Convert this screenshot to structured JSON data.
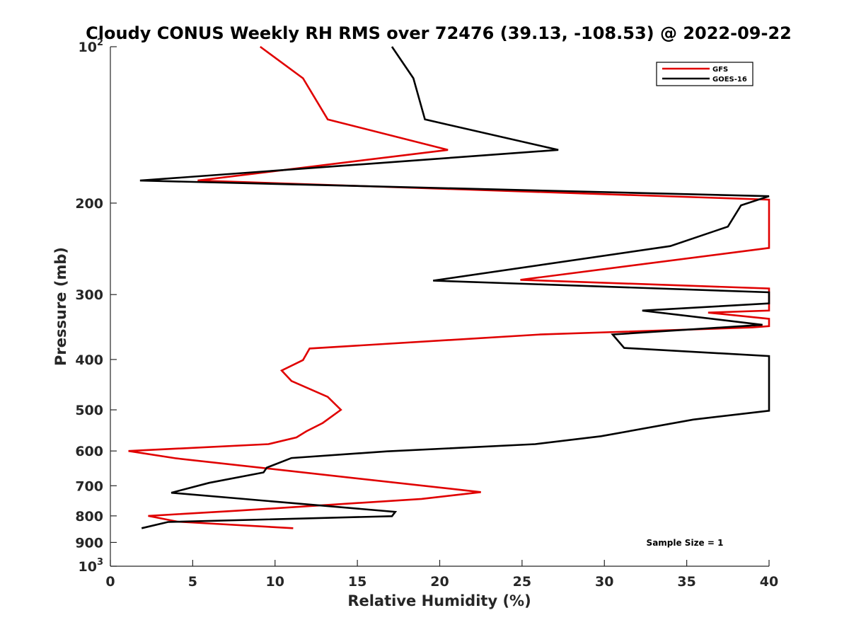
{
  "chart_data": {
    "type": "line",
    "title": "Cloudy CONUS Weekly RH RMS over 72476 (39.13, -108.53) @ 2022-09-22",
    "xlabel": "Relative Humidity (%)",
    "ylabel": "Pressure (mb)",
    "xlim": [
      0,
      40
    ],
    "ylim": [
      100,
      1000
    ],
    "y_scale": "log",
    "y_reversed": true,
    "x_ticks": [
      "0",
      "5",
      "10",
      "15",
      "20",
      "25",
      "30",
      "35",
      "40"
    ],
    "y_ticks": [
      {
        "value": 100,
        "label": "10",
        "sup": "2"
      },
      {
        "value": 200,
        "label": "200",
        "sup": ""
      },
      {
        "value": 300,
        "label": "300",
        "sup": ""
      },
      {
        "value": 400,
        "label": "400",
        "sup": ""
      },
      {
        "value": 500,
        "label": "500",
        "sup": ""
      },
      {
        "value": 600,
        "label": "600",
        "sup": ""
      },
      {
        "value": 700,
        "label": "700",
        "sup": ""
      },
      {
        "value": 800,
        "label": "800",
        "sup": ""
      },
      {
        "value": 900,
        "label": "900",
        "sup": ""
      },
      {
        "value": 1000,
        "label": "10",
        "sup": "3"
      }
    ],
    "legend_position": "top-right",
    "grid": false,
    "annotation": "Sample Size = 1",
    "series": [
      {
        "name": "GFS",
        "color": "#e00000",
        "points": [
          [
            9.1,
            100
          ],
          [
            11.7,
            115
          ],
          [
            13.2,
            138
          ],
          [
            20.5,
            158
          ],
          [
            5.3,
            181
          ],
          [
            40.0,
            197
          ],
          [
            40.0,
            244
          ],
          [
            24.9,
            281
          ],
          [
            40.0,
            292
          ],
          [
            40.0,
            322
          ],
          [
            36.3,
            325
          ],
          [
            40.0,
            334
          ],
          [
            40.0,
            345
          ],
          [
            39.0,
            347
          ],
          [
            26.1,
            358
          ],
          [
            12.1,
            381
          ],
          [
            11.7,
            401
          ],
          [
            10.4,
            420
          ],
          [
            11.0,
            440
          ],
          [
            13.2,
            472
          ],
          [
            14.0,
            500
          ],
          [
            12.9,
            530
          ],
          [
            11.9,
            550
          ],
          [
            11.3,
            565
          ],
          [
            9.6,
            582
          ],
          [
            1.1,
            600
          ],
          [
            4.0,
            620
          ],
          [
            22.5,
            720
          ],
          [
            18.9,
            742
          ],
          [
            7.7,
            782
          ],
          [
            2.3,
            800
          ],
          [
            4.1,
            821
          ],
          [
            11.1,
            845
          ]
        ]
      },
      {
        "name": "GOES-16",
        "color": "#000000",
        "points": [
          [
            17.1,
            100
          ],
          [
            18.4,
            115
          ],
          [
            19.1,
            138
          ],
          [
            27.2,
            158
          ],
          [
            1.8,
            181
          ],
          [
            40.0,
            194
          ],
          [
            38.3,
            202
          ],
          [
            37.5,
            222
          ],
          [
            34.0,
            242
          ],
          [
            19.6,
            282
          ],
          [
            40.0,
            297
          ],
          [
            40.0,
            312
          ],
          [
            32.3,
            322
          ],
          [
            39.6,
            343
          ],
          [
            30.5,
            358
          ],
          [
            31.2,
            380
          ],
          [
            40.0,
            394
          ],
          [
            40.0,
            502
          ],
          [
            35.4,
            522
          ],
          [
            29.8,
            562
          ],
          [
            25.8,
            582
          ],
          [
            16.8,
            601
          ],
          [
            11.0,
            619
          ],
          [
            9.5,
            646
          ],
          [
            9.3,
            660
          ],
          [
            6.0,
            691
          ],
          [
            3.7,
            722
          ],
          [
            17.3,
            786
          ],
          [
            17.1,
            801
          ],
          [
            3.5,
            822
          ],
          [
            1.9,
            845
          ]
        ]
      }
    ]
  }
}
